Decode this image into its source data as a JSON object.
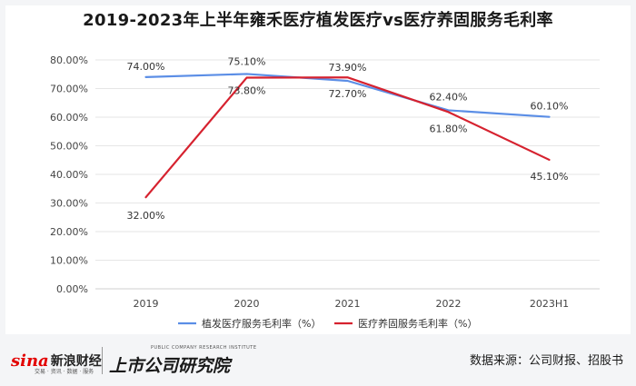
{
  "title": "2019-2023年上半年雍禾医疗植发医疗vs医疗养固服务毛利率",
  "chart_data": {
    "type": "line",
    "categories": [
      "2019",
      "2020",
      "2021",
      "2022",
      "2023H1"
    ],
    "series": [
      {
        "name": "植发医疗服务毛利率（%）",
        "values": [
          74.0,
          75.1,
          72.7,
          62.4,
          60.1
        ],
        "labels": [
          "74.00%",
          "75.10%",
          "72.70%",
          "62.40%",
          "60.10%"
        ],
        "color": "#5b8ee6"
      },
      {
        "name": "医疗养固服务毛利率（%）",
        "values": [
          32.0,
          73.8,
          73.9,
          61.8,
          45.1
        ],
        "labels": [
          "32.00%",
          "73.80%",
          "73.90%",
          "61.80%",
          "45.10%"
        ],
        "color": "#d6222f"
      }
    ],
    "yticks": [
      "80.00%",
      "70.00%",
      "60.00%",
      "50.00%",
      "40.00%",
      "30.00%",
      "20.00%",
      "10.00%",
      "0.00%"
    ],
    "ylim": [
      0,
      80
    ],
    "grid": true,
    "legend_position": "bottom"
  },
  "footer": {
    "sina_mark": "sina",
    "sina_name": "新浪财经",
    "sina_sub": "交易 · 资讯 · 数据 · 服务",
    "research_name": "上市公司研究院",
    "research_en": "PUBLIC COMPANY RESEARCH INSTITUTE",
    "source": "数据来源：公司财报、招股书"
  }
}
